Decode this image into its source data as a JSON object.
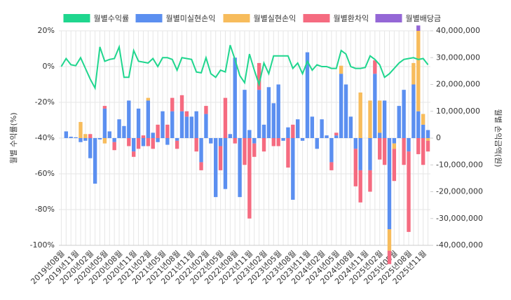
{
  "chart_data": {
    "type": "bar",
    "y_label": "월별 수익률(%)",
    "y2_label": "월별 손익금액(원)",
    "categories": [
      "2019년08월",
      null,
      null,
      "2019년11월",
      null,
      null,
      "2020년02월",
      null,
      null,
      "2020년05월",
      null,
      null,
      "2020년08월",
      null,
      null,
      "2020년11월",
      null,
      null,
      "2021년02월",
      null,
      null,
      "2021년05월",
      null,
      null,
      "2021년08월",
      null,
      null,
      "2021년11월",
      null,
      null,
      "2022년02월",
      null,
      null,
      "2022년05월",
      null,
      null,
      "2022년08월",
      null,
      null,
      "2022년11월",
      null,
      null,
      "2023년02월",
      null,
      null,
      "2023년05월",
      null,
      null,
      "2023년08월",
      null,
      null,
      "2023년11월",
      null,
      null,
      "2024년02월",
      null,
      null,
      "2024년05월",
      null,
      null,
      "2024년08월",
      null,
      null,
      "2024년11월",
      null,
      null,
      "2025년02월",
      null,
      null,
      "2025년05월",
      null,
      null,
      "2025년08월",
      null,
      null,
      "2025년11월",
      null
    ],
    "series": [
      {
        "name": "월별수익률",
        "type": "line",
        "axis": "y",
        "color": "#1fd68e",
        "values": [
          0,
          4.5,
          1,
          0.5,
          5,
          -1,
          -7,
          -12,
          11,
          3,
          4,
          4.5,
          11,
          -6,
          -6,
          9,
          3,
          2.5,
          2,
          4.5,
          0,
          5,
          5,
          4,
          -2,
          5,
          4.5,
          4,
          -3,
          -3.5,
          5,
          -4,
          -6,
          -2,
          -3,
          12,
          4,
          -5,
          -9,
          7,
          -2,
          -10,
          2,
          -4,
          6,
          6,
          6,
          6,
          -1,
          2,
          -4,
          3,
          -2,
          1,
          0,
          0,
          -1,
          -1,
          9,
          7,
          0,
          -1,
          -1,
          -0.5,
          6,
          4,
          1,
          -6,
          -4,
          -1,
          2,
          4,
          4.5,
          5,
          4,
          4.5,
          1
        ]
      },
      {
        "name": "월별미실현손익",
        "axis": "y2",
        "color": "#5b8ff0",
        "values": [
          0,
          2500000,
          500000,
          300000,
          -1500000,
          -1000000,
          -7500000,
          -17000000,
          -500000,
          11000000,
          2500000,
          -1500000,
          7000000,
          4500000,
          14000000,
          -5000000,
          11000000,
          -3000000,
          14000000,
          2000000,
          -1500000,
          10000000,
          -2500000,
          10000000,
          -1000000,
          10000000,
          8000000,
          8000000,
          10000000,
          -9000000,
          9000000,
          -2000000,
          -22000000,
          -3000000,
          -19000000,
          1500000,
          30000000,
          -22000000,
          18000000,
          3000000,
          -2000000,
          18000000,
          5000000,
          19000000,
          13000000,
          20000000,
          -1000000,
          4000000,
          -23000000,
          7000000,
          -1000000,
          32000000,
          8000000,
          -4000000,
          7000000,
          1000000,
          -9000000,
          1000000,
          24000000,
          20000000,
          8000000,
          -4000000,
          -12000000,
          0,
          -12000000,
          24000000,
          2000000,
          14000000,
          -34000000,
          -2000000,
          12000000,
          18000000,
          -5000000,
          20000000,
          10000000,
          5000000,
          3000000
        ]
      },
      {
        "name": "월별실현손익",
        "axis": "y2",
        "color": "#f7bc5c",
        "values": [
          0,
          0,
          0,
          0,
          6000000,
          1500000,
          0,
          0,
          0,
          -2000000,
          0,
          0,
          0,
          0,
          0,
          0,
          0,
          0,
          1000000,
          0,
          0,
          0,
          0,
          0,
          0,
          0,
          0,
          0,
          0,
          0,
          0,
          0,
          0,
          0,
          0,
          0,
          0,
          0,
          0,
          0,
          0,
          0,
          0,
          0,
          0,
          0,
          0,
          0,
          0,
          0,
          0,
          0,
          0,
          0,
          0,
          0,
          0,
          0,
          3000000,
          0,
          0,
          0,
          17000000,
          0,
          14000000,
          0,
          12000000,
          0,
          -8000000,
          -2000000,
          0,
          0,
          0,
          8000000,
          30000000,
          4000000,
          -1000000
        ]
      },
      {
        "name": "월별환차익",
        "axis": "y2",
        "color": "#f56b80",
        "values": [
          0,
          0,
          0,
          0,
          0,
          0,
          1500000,
          0,
          0,
          1000000,
          0,
          -3000000,
          0,
          0,
          -3000000,
          -2000000,
          -4000000,
          1000000,
          -3000000,
          -4000000,
          5000000,
          0,
          5000000,
          5000000,
          -3000000,
          6000000,
          2000000,
          0,
          -5000000,
          -3000000,
          3000000,
          0,
          0,
          -9000000,
          15000000,
          0,
          -2000000,
          0,
          -10000000,
          -30000000,
          -5000000,
          10000000,
          -5000000,
          0,
          -3000000,
          -3000000,
          0,
          -11000000,
          5000000,
          0,
          0,
          0,
          0,
          0,
          0,
          0,
          -3000000,
          1000000,
          0,
          0,
          0,
          -14000000,
          -12000000,
          0,
          -8000000,
          5000000,
          -8000000,
          -10000000,
          -5000000,
          -12000000,
          0,
          -10000000,
          -30000000,
          0,
          -6000000,
          -10000000,
          -4000000
        ]
      },
      {
        "name": "월별배당금",
        "axis": "y2",
        "color": "#9467d6",
        "values": [
          0,
          0,
          0,
          0,
          0,
          0,
          0,
          0,
          0,
          0,
          0,
          0,
          0,
          0,
          0,
          0,
          0,
          0,
          0,
          0,
          0,
          0,
          0,
          0,
          0,
          0,
          0,
          0,
          0,
          0,
          0,
          0,
          0,
          0,
          0,
          0,
          0,
          0,
          0,
          0,
          0,
          0,
          0,
          0,
          0,
          0,
          0,
          0,
          0,
          0,
          0,
          0,
          0,
          0,
          0,
          0,
          0,
          0,
          0,
          0,
          0,
          0,
          0,
          0,
          0,
          0,
          0,
          0,
          0,
          0,
          0,
          0,
          0,
          0,
          2000000,
          0,
          0
        ]
      }
    ],
    "ylim": [
      -100,
      20
    ],
    "yticks": [
      {
        "value": 20,
        "label": "20%"
      },
      {
        "value": 0,
        "label": "0%"
      },
      {
        "value": -20,
        "label": "-20%"
      },
      {
        "value": -40,
        "label": "-40%"
      },
      {
        "value": -60,
        "label": "-60%"
      },
      {
        "value": -80,
        "label": "-80%"
      },
      {
        "value": -100,
        "label": "-100%"
      }
    ],
    "y2lim": [
      -40000000,
      40000000
    ],
    "y2ticks": [
      {
        "value": 40000000,
        "label": "40,000,000"
      },
      {
        "value": 30000000,
        "label": "30,000,000"
      },
      {
        "value": 20000000,
        "label": "20,000,000"
      },
      {
        "value": 10000000,
        "label": "10,000,000"
      },
      0,
      {
        "value": -10000000,
        "label": "-10,000,000"
      },
      {
        "value": -20000000,
        "label": "-20,000,000"
      },
      {
        "value": -30000000,
        "label": "-30,000,000"
      },
      {
        "value": -40000000,
        "label": "-40,000,000"
      }
    ],
    "grid": true,
    "legend": "top"
  }
}
